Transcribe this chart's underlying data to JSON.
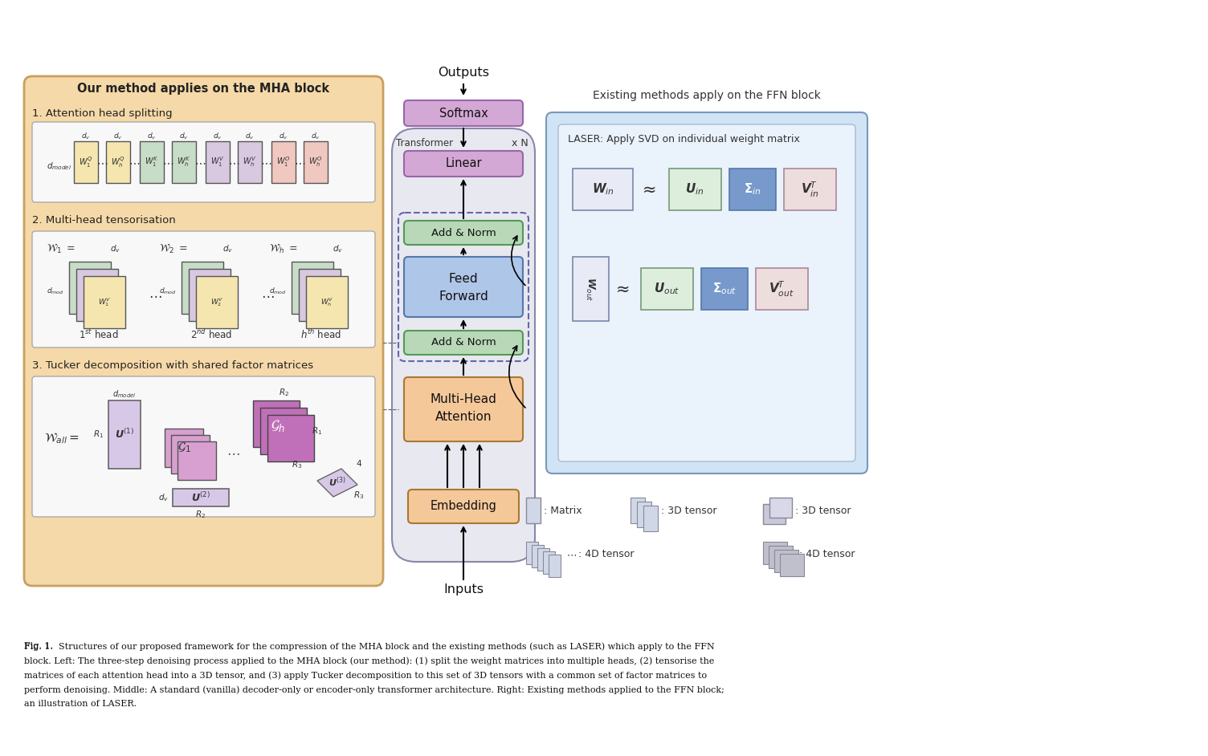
{
  "bg_color": "#ffffff",
  "fig_width": 15.04,
  "fig_height": 9.42,
  "left_panel_bg": "#f5d9a8",
  "left_panel_border": "#c8a060",
  "right_panel_bg": "#d0e4f5",
  "right_panel_border": "#7799bb",
  "right_inner_bg": "#e8f2fc",
  "softmax_color": "#d4a8d4",
  "linear_color": "#d4a8d4",
  "addnorm_color": "#b8d8b8",
  "feedforward_color": "#aec6e8",
  "mha_color": "#f5c89a",
  "embedding_color": "#f5c89a",
  "mid_panel_bg": "#e8e8f0",
  "mid_panel_border": "#8888aa",
  "caption_line1": "Fig. 1.  Structures of our proposed framework for the compression of the MHA block and the existing methods (such as LASER) which apply to the FFN",
  "caption_line2": "block. Left: The three-step denoising process applied to the MHA block (our method): (1) split the weight matrices into multiple heads, (2) tensorise the",
  "caption_line3": "matrices of each attention head into a 3D tensor, and (3) apply Tucker decomposition to this set of 3D tensors with a common set of factor matrices to",
  "caption_line4": "perform denoising. Middle: A standard (vanilla) decoder-only or encoder-only transformer architecture. Right: Existing methods applied to the FFN block;",
  "caption_line5": "an illustration of LASER."
}
